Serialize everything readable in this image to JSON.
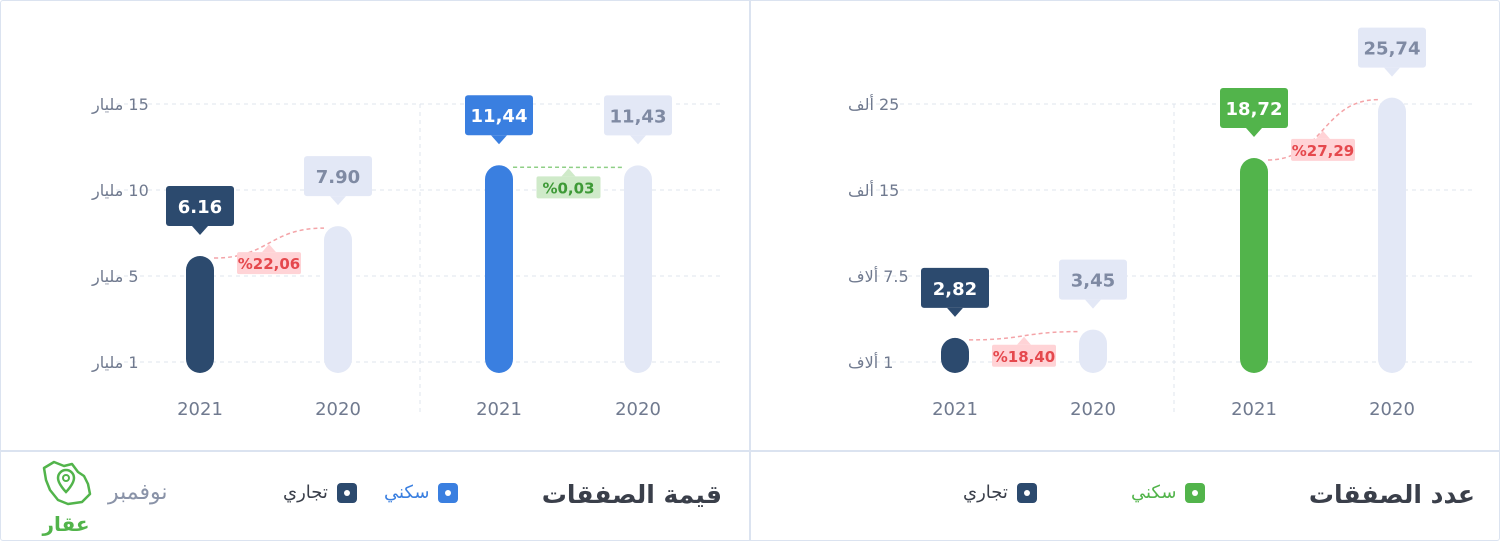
{
  "colors": {
    "value_residential": "#3a7fe0",
    "value_commercial": "#2c4a6e",
    "count_residential": "#52b44b",
    "count_commercial": "#2c4a6e",
    "baseline_2020": "#e3e8f6",
    "change_negative_bg": "#ffd3d6",
    "change_negative_text": "#e5484d",
    "change_positive_bg": "#cfeac9",
    "change_positive_text": "#3e9a37"
  },
  "month": "نوفمبر",
  "logo_text": "عقار",
  "logo_icon": "saudi-map-location-pin-icon",
  "left_panel": {
    "title": "قيمة الصفقات",
    "legend": [
      {
        "label": "سكني",
        "color": "#3a7fe0",
        "text_color": "#3a7fe0"
      },
      {
        "label": "تجاري",
        "color": "#2c4a6e",
        "text_color": "#3a3f4a"
      }
    ]
  },
  "right_panel": {
    "title": "عدد الصفقات",
    "legend": [
      {
        "label": "سكني",
        "color": "#52b44b",
        "text_color": "#52b44b"
      },
      {
        "label": "تجاري",
        "color": "#2c4a6e",
        "text_color": "#3a3f4a"
      }
    ]
  },
  "chart_data": [
    {
      "type": "bar",
      "title": "قيمة الصفقات",
      "y_ticks": [
        {
          "value": 15,
          "label": "15 مليار"
        },
        {
          "value": 10,
          "label": "10 مليار"
        },
        {
          "value": 5,
          "label": "5 مليار"
        },
        {
          "value": 1,
          "label": "1 مليار"
        }
      ],
      "groups": [
        {
          "name": "تجاري",
          "bars": [
            {
              "year": "2021",
              "value": 6.16,
              "label": "6.16",
              "highlight": true
            },
            {
              "year": "2020",
              "value": 7.9,
              "label": "7.90",
              "highlight": false
            }
          ],
          "change": {
            "label": "%22,06",
            "direction": "negative"
          }
        },
        {
          "name": "سكني",
          "bars": [
            {
              "year": "2021",
              "value": 11.44,
              "label": "11,44",
              "highlight": true
            },
            {
              "year": "2020",
              "value": 11.43,
              "label": "11,43",
              "highlight": false
            }
          ],
          "change": {
            "label": "%0,03",
            "direction": "positive"
          }
        }
      ]
    },
    {
      "type": "bar",
      "title": "عدد الصفقات",
      "y_ticks": [
        {
          "value": 25,
          "label": "25 ألف"
        },
        {
          "value": 15,
          "label": "15 ألف"
        },
        {
          "value": 7.5,
          "label": "7.5 ألاف"
        },
        {
          "value": 1,
          "label": "1 ألاف"
        }
      ],
      "groups": [
        {
          "name": "تجاري",
          "bars": [
            {
              "year": "2021",
              "value": 2.82,
              "label": "2,82",
              "highlight": true
            },
            {
              "year": "2020",
              "value": 3.45,
              "label": "3,45",
              "highlight": false
            }
          ],
          "change": {
            "label": "%18,40",
            "direction": "negative"
          }
        },
        {
          "name": "سكني",
          "bars": [
            {
              "year": "2021",
              "value": 18.72,
              "label": "18,72",
              "highlight": true
            },
            {
              "year": "2020",
              "value": 25.74,
              "label": "25,74",
              "highlight": false
            }
          ],
          "change": {
            "label": "%27,29",
            "direction": "negative"
          }
        }
      ]
    }
  ]
}
